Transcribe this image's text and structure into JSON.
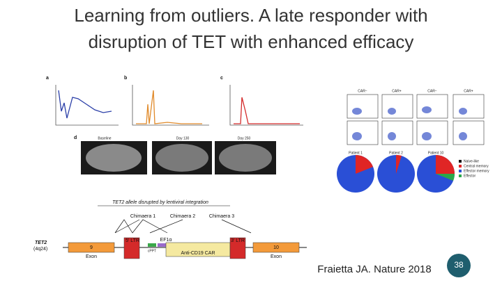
{
  "title": [
    "Learning from outliers. A late responder with",
    "disruption of TET with enhanced efficacy"
  ],
  "figure": {
    "panels": [
      "a",
      "b",
      "c",
      "d"
    ],
    "ct_labels": [
      "Baseline",
      "Day 130",
      "Day 250"
    ],
    "flow_headers": [
      "CAR−",
      "CAR+",
      "CAR−",
      "CAR+"
    ],
    "patients": [
      "Patient 1",
      "Patient 2",
      "Patient 10"
    ],
    "legend": [
      "Naive-like",
      "Central memory",
      "Effector memory",
      "Effector"
    ],
    "diagram": {
      "title": "TET2 allele disrupted by lentiviral integration",
      "chimaeras": [
        "Chimaera 1",
        "Chimaera 2",
        "Chimaera 3"
      ],
      "gene": "TET2",
      "locus": "(4q24)",
      "ltr5": "5′ LTR",
      "ef": "EF1α",
      "ltr3": "3′ LTR",
      "cppt": "cPPT",
      "car": "Anti-CD19 CAR",
      "exons": [
        "9",
        "10"
      ],
      "exon_label": "Exon"
    }
  },
  "citation": "Fraietta JA. Nature 2018",
  "slide_number": "38"
}
